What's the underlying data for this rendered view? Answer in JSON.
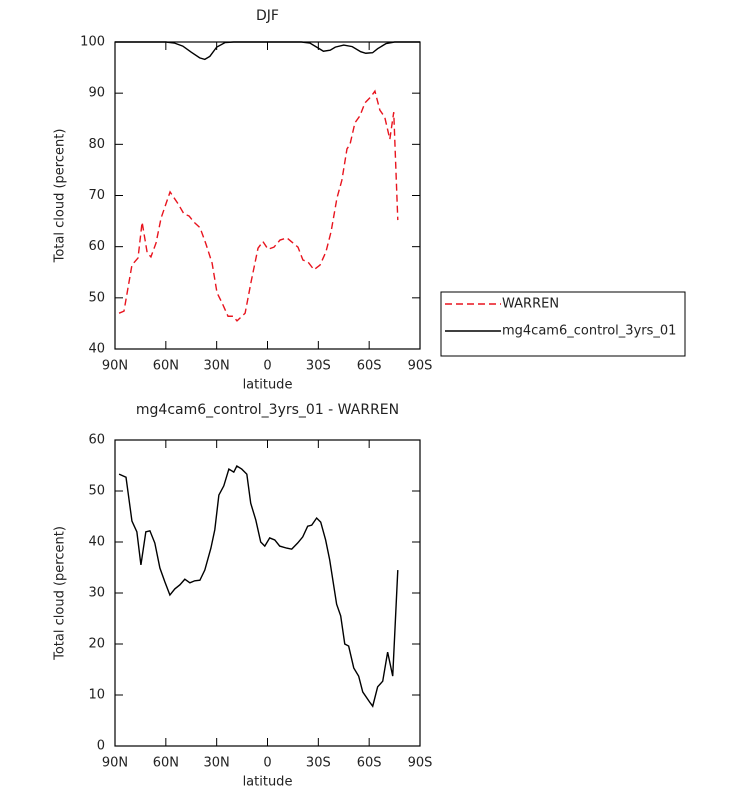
{
  "chart_data": [
    {
      "type": "line",
      "title": "DJF",
      "xlabel": "latitude",
      "ylabel": "Total cloud (percent)",
      "xlim": [
        90,
        -90
      ],
      "xticks": [
        {
          "value": 90,
          "label": "90N"
        },
        {
          "value": 60,
          "label": "60N"
        },
        {
          "value": 30,
          "label": "30N"
        },
        0,
        {
          "value": -30,
          "label": "30S"
        },
        {
          "value": -60,
          "label": "60S"
        },
        {
          "value": -90,
          "label": "90S"
        }
      ],
      "ylim": [
        40,
        100
      ],
      "yticks": [
        40,
        50,
        60,
        70,
        80,
        90,
        100
      ],
      "legend": "right",
      "series": [
        {
          "name": "WARREN",
          "color": "#e8141e",
          "linestyle": "dashed",
          "x": [
            87.6,
            84.7,
            80,
            76.4,
            74,
            71,
            68.8,
            65.8,
            62.8,
            57.5,
            52.8,
            49.3,
            46.3,
            43.4,
            39.8,
            36.3,
            32.7,
            29.8,
            26.8,
            23.3,
            20.3,
            18,
            13.2,
            9.7,
            5.6,
            2.7,
            -0.3,
            -3.8,
            -7.4,
            -11.5,
            -14.4,
            -18,
            -20.9,
            -23.9,
            -27.4,
            -31,
            -34.5,
            -37.5,
            -41,
            -43.9,
            -46.9,
            -48.7,
            -51.6,
            -54.6,
            -57.5,
            -61,
            -63.4,
            -66.3,
            -69.2,
            -72.2,
            -74.5,
            -76.9
          ],
          "values": [
            47,
            47.4,
            56.4,
            57.8,
            64.8,
            58.8,
            58,
            60.7,
            65.6,
            70.7,
            68.4,
            66.4,
            66,
            64.8,
            63.7,
            60.5,
            56.8,
            51,
            49,
            46.4,
            46.4,
            45.5,
            47,
            53.1,
            59.7,
            61,
            59.5,
            59.9,
            61.3,
            61.7,
            60.9,
            59.9,
            57.4,
            57,
            55.5,
            56.4,
            59,
            62.9,
            69.5,
            73,
            79.1,
            80,
            84.2,
            85.6,
            88.1,
            89.3,
            90.4,
            86.7,
            85.3,
            81,
            86.3,
            65.2
          ]
        },
        {
          "name": "mg4cam6_control_3yrs_01",
          "color": "#000000",
          "linestyle": "solid",
          "x": [
            90,
            80,
            70,
            60,
            55,
            50,
            45,
            40,
            37,
            34,
            30,
            25,
            20,
            10,
            0,
            -10,
            -20,
            -25,
            -30,
            -33,
            -37,
            -40,
            -45,
            -50,
            -55,
            -58,
            -62,
            -65,
            -70,
            -75,
            -80,
            -90
          ],
          "values": [
            100,
            100,
            100,
            100,
            99.8,
            99.2,
            98,
            96.9,
            96.6,
            97.2,
            99,
            99.9,
            100,
            100,
            100,
            100,
            100,
            99.8,
            98.8,
            98.2,
            98.4,
            99,
            99.4,
            99.1,
            98.1,
            97.8,
            97.9,
            98.7,
            99.7,
            100,
            100,
            100
          ]
        }
      ]
    },
    {
      "type": "line",
      "title": "mg4cam6_control_3yrs_01 - WARREN",
      "xlabel": "latitude",
      "ylabel": "Total cloud (percent)",
      "xlim": [
        90,
        -90
      ],
      "xticks": [
        {
          "value": 90,
          "label": "90N"
        },
        {
          "value": 60,
          "label": "60N"
        },
        {
          "value": 30,
          "label": "30N"
        },
        0,
        {
          "value": -30,
          "label": "30S"
        },
        {
          "value": -60,
          "label": "60S"
        },
        {
          "value": -90,
          "label": "90S"
        }
      ],
      "ylim": [
        0,
        60
      ],
      "yticks": [
        0,
        10,
        20,
        30,
        40,
        50,
        60
      ],
      "color": "#000000",
      "x": [
        87.6,
        83.5,
        80,
        77.1,
        74.7,
        71.8,
        69.4,
        66.5,
        63.5,
        60.6,
        57.6,
        54.7,
        51.7,
        48.8,
        45.8,
        42.9,
        39.9,
        37,
        33.4,
        31.1,
        28.7,
        25.8,
        22.8,
        19.9,
        18.1,
        15.2,
        12.2,
        9.9,
        6.9,
        4,
        1.6,
        -1.3,
        -4.3,
        -7.2,
        -11.3,
        -14.3,
        -17.8,
        -20.8,
        -23.7,
        -26.1,
        -29,
        -31.4,
        -34.3,
        -36.7,
        -40.8,
        -43.2,
        -45.6,
        -47.9,
        -50.9,
        -53.8,
        -56.2,
        -60.3,
        -62.1,
        -65,
        -68,
        -70.9,
        -73.9,
        -76.9
      ],
      "values": [
        53.3,
        52.7,
        44.1,
        42,
        35.5,
        42,
        42.2,
        39.8,
        34.9,
        32.2,
        29.6,
        30.8,
        31.6,
        32.7,
        32,
        32.4,
        32.5,
        34.5,
        38.8,
        42.4,
        49.2,
        51,
        54.3,
        53.7,
        54.9,
        54.3,
        53.3,
        47.6,
        44.3,
        40,
        39.2,
        40.8,
        40.4,
        39.2,
        38.8,
        38.6,
        39.8,
        41,
        43.1,
        43.3,
        44.7,
        43.9,
        40.4,
        36.5,
        27.8,
        25.5,
        20,
        19.6,
        15.3,
        13.7,
        10.6,
        8.6,
        7.8,
        11.6,
        12.7,
        18.4,
        13.7,
        34.5
      ]
    }
  ]
}
